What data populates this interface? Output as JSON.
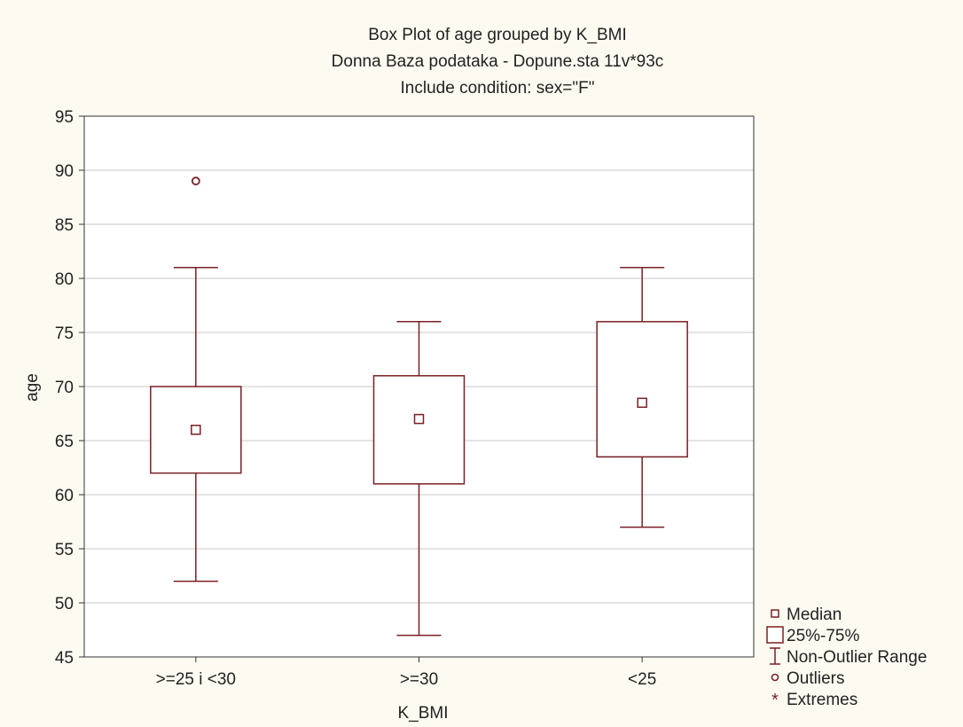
{
  "chart_data": {
    "type": "box",
    "title": "Box Plot of age grouped by  K_BMI",
    "subtitle": "Donna Baza podataka - Dopune.sta 11v*93c",
    "condition": "Include condition: sex=\"F\"",
    "xlabel": "K_BMI",
    "ylabel": "age",
    "ylim": [
      45,
      95
    ],
    "yticks": [
      45,
      50,
      55,
      60,
      65,
      70,
      75,
      80,
      85,
      90,
      95
    ],
    "grid": true,
    "legend_position": "bottom-right, outside plot",
    "colors": {
      "stroke": "#7a1f24",
      "grid": "#c9c9c9",
      "background": "#fdfbf1"
    },
    "categories": [
      ">=25 i <30",
      ">=30",
      "<25"
    ],
    "boxes": [
      {
        "category": ">=25 i <30",
        "median": 66,
        "q1": 62,
        "q3": 70,
        "whisker_low": 52,
        "whisker_high": 81,
        "outliers": [
          89
        ],
        "extremes": []
      },
      {
        "category": ">=30",
        "median": 67,
        "q1": 61,
        "q3": 71,
        "whisker_low": 47,
        "whisker_high": 76,
        "outliers": [],
        "extremes": []
      },
      {
        "category": "<25",
        "median": 68.5,
        "q1": 63.5,
        "q3": 76,
        "whisker_low": 57,
        "whisker_high": 81,
        "outliers": [],
        "extremes": []
      }
    ],
    "legend": [
      {
        "symbol": "median",
        "label": "Median"
      },
      {
        "symbol": "box",
        "label": "25%-75%"
      },
      {
        "symbol": "whisker",
        "label": "Non-Outlier Range"
      },
      {
        "symbol": "outlier",
        "label": "Outliers"
      },
      {
        "symbol": "extreme",
        "label": "Extremes"
      }
    ]
  }
}
